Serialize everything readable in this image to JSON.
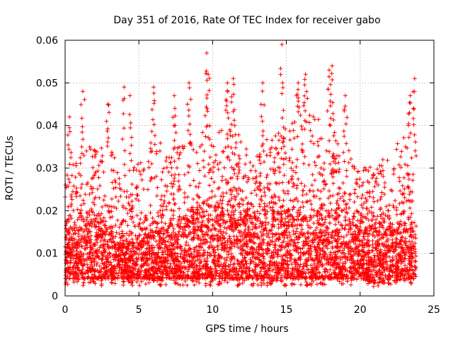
{
  "chart_data": {
    "type": "scatter",
    "title": "Day 351 of 2016, Rate Of TEC Index for receiver gabo",
    "xlabel": "GPS time / hours",
    "ylabel": "ROTI / TECUs",
    "xlim": [
      0,
      25
    ],
    "ylim": [
      0,
      0.06
    ],
    "xticks": [
      0,
      5,
      10,
      15,
      20,
      25
    ],
    "yticks": [
      0,
      0.01,
      0.02,
      0.03,
      0.04,
      0.05,
      0.06
    ],
    "xtick_labels": [
      "0",
      "5",
      "10",
      "15",
      "20",
      "25"
    ],
    "ytick_labels": [
      "0",
      "0.01",
      "0.02",
      "0.03",
      "0.04",
      "0.05",
      "0.06"
    ],
    "grid": true,
    "marker": "+",
    "color": "#ff0000",
    "data_extent_x": [
      0,
      23.8
    ],
    "envelope": {
      "x": [
        0,
        1,
        2,
        3,
        4,
        5,
        6,
        7,
        8,
        9,
        10,
        11,
        12,
        13,
        14,
        15,
        16,
        17,
        18,
        19,
        20,
        21,
        22,
        23,
        23.8
      ],
      "typical_max": [
        0.03,
        0.033,
        0.036,
        0.035,
        0.028,
        0.032,
        0.038,
        0.034,
        0.036,
        0.04,
        0.036,
        0.042,
        0.038,
        0.034,
        0.038,
        0.04,
        0.044,
        0.042,
        0.04,
        0.036,
        0.032,
        0.03,
        0.034,
        0.038,
        0.036
      ],
      "dense_top": [
        0.015,
        0.016,
        0.017,
        0.016,
        0.012,
        0.013,
        0.015,
        0.016,
        0.017,
        0.019,
        0.018,
        0.02,
        0.019,
        0.018,
        0.02,
        0.019,
        0.019,
        0.018,
        0.018,
        0.017,
        0.016,
        0.015,
        0.016,
        0.017,
        0.016
      ],
      "floor": [
        0.004,
        0.004,
        0.004,
        0.004,
        0.004,
        0.004,
        0.004,
        0.004,
        0.004,
        0.004,
        0.004,
        0.004,
        0.004,
        0.004,
        0.004,
        0.004,
        0.004,
        0.004,
        0.004,
        0.004,
        0.004,
        0.003,
        0.003,
        0.004,
        0.004
      ]
    },
    "peaks": [
      {
        "x": 0.3,
        "y": 0.042
      },
      {
        "x": 1.2,
        "y": 0.048
      },
      {
        "x": 2.9,
        "y": 0.045
      },
      {
        "x": 4.0,
        "y": 0.049
      },
      {
        "x": 4.4,
        "y": 0.047
      },
      {
        "x": 6.0,
        "y": 0.049
      },
      {
        "x": 7.4,
        "y": 0.047
      },
      {
        "x": 8.4,
        "y": 0.05
      },
      {
        "x": 9.6,
        "y": 0.057
      },
      {
        "x": 9.7,
        "y": 0.052
      },
      {
        "x": 11.0,
        "y": 0.05
      },
      {
        "x": 11.4,
        "y": 0.051
      },
      {
        "x": 13.4,
        "y": 0.05
      },
      {
        "x": 14.7,
        "y": 0.059
      },
      {
        "x": 15.8,
        "y": 0.05
      },
      {
        "x": 16.3,
        "y": 0.052
      },
      {
        "x": 17.9,
        "y": 0.053
      },
      {
        "x": 18.1,
        "y": 0.054
      },
      {
        "x": 19.0,
        "y": 0.047
      },
      {
        "x": 23.4,
        "y": 0.047
      },
      {
        "x": 23.7,
        "y": 0.051
      }
    ]
  }
}
